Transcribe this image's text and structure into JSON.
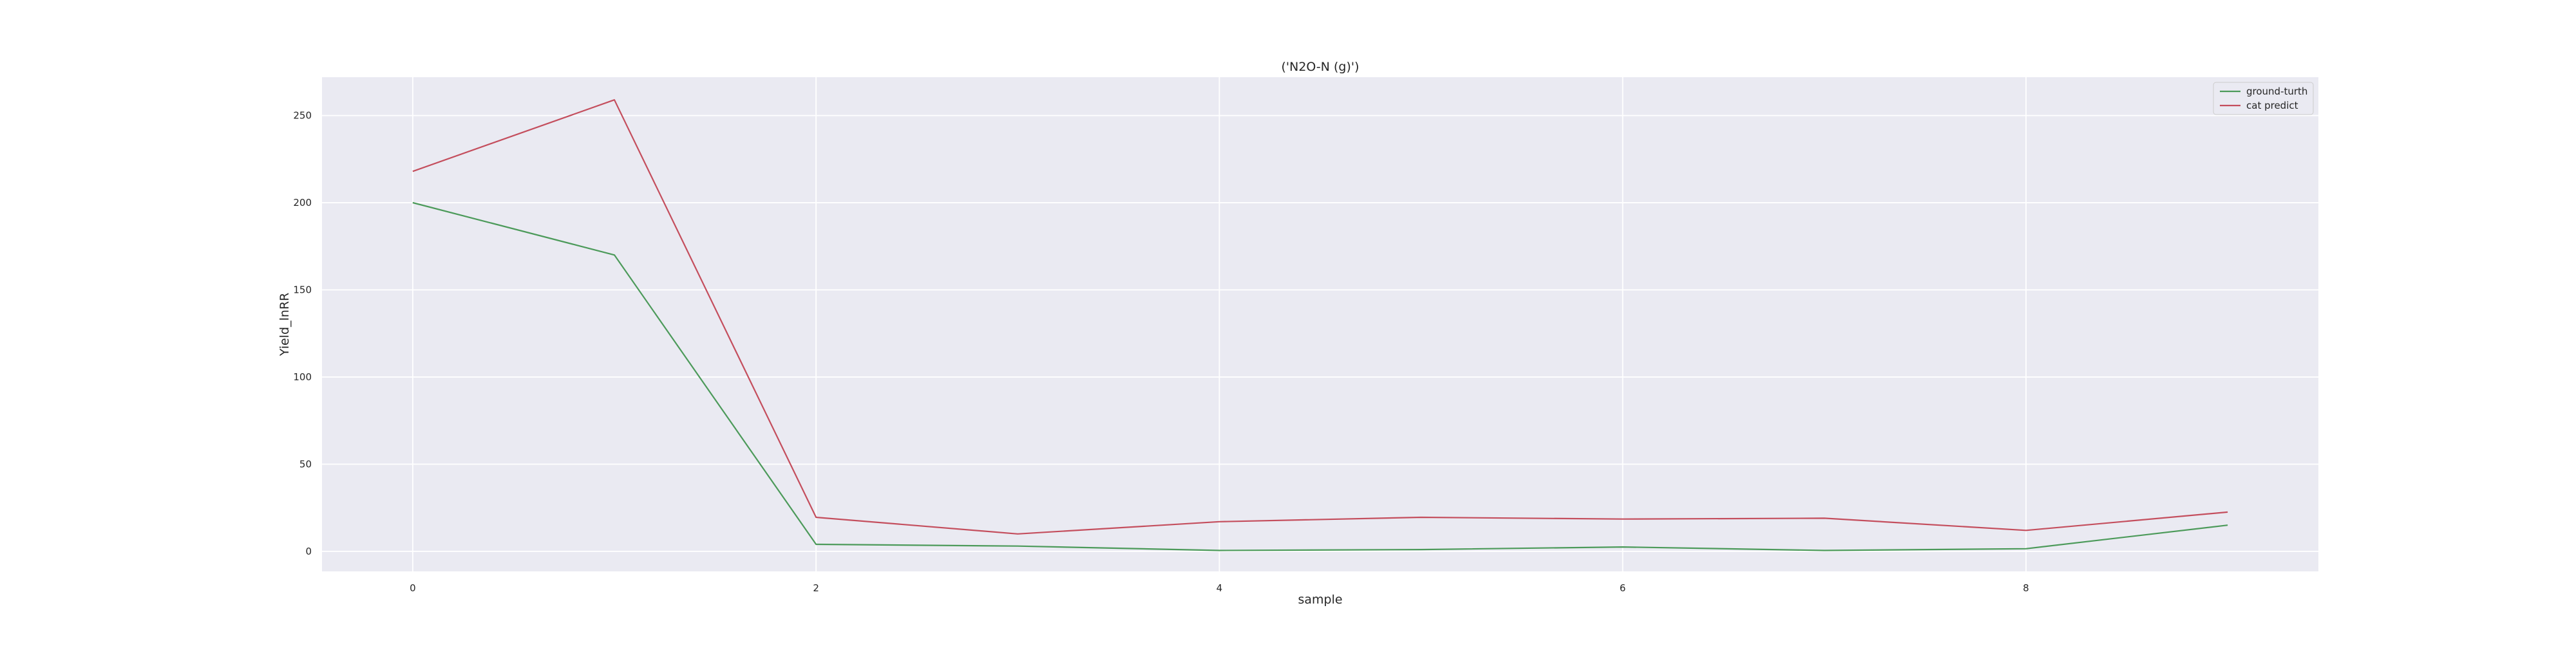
{
  "chart_data": {
    "type": "line",
    "title": "('N2O-N (g)')",
    "xlabel": "sample",
    "ylabel": "Yield_lnRR",
    "x": [
      0,
      1,
      2,
      3,
      4,
      5,
      6,
      7,
      8,
      9
    ],
    "xlim": [
      -0.45,
      9.45
    ],
    "ylim": [
      -11.5,
      272
    ],
    "xticks": [
      0,
      2,
      4,
      6,
      8
    ],
    "yticks": [
      0,
      50,
      100,
      150,
      200,
      250
    ],
    "grid": true,
    "legend_position": "top-right",
    "series": [
      {
        "name": "ground-turth",
        "color": "#4c9a5a",
        "values": [
          200,
          170,
          4,
          3,
          0.5,
          1,
          2.5,
          0.5,
          1.5,
          15
        ]
      },
      {
        "name": "cat predict",
        "color": "#c44e5d",
        "values": [
          218,
          259,
          19.5,
          10,
          17,
          19.5,
          18.5,
          19,
          12,
          22.5
        ]
      }
    ],
    "background_color": "#eaeaf2",
    "grid_color": "#ffffff"
  }
}
